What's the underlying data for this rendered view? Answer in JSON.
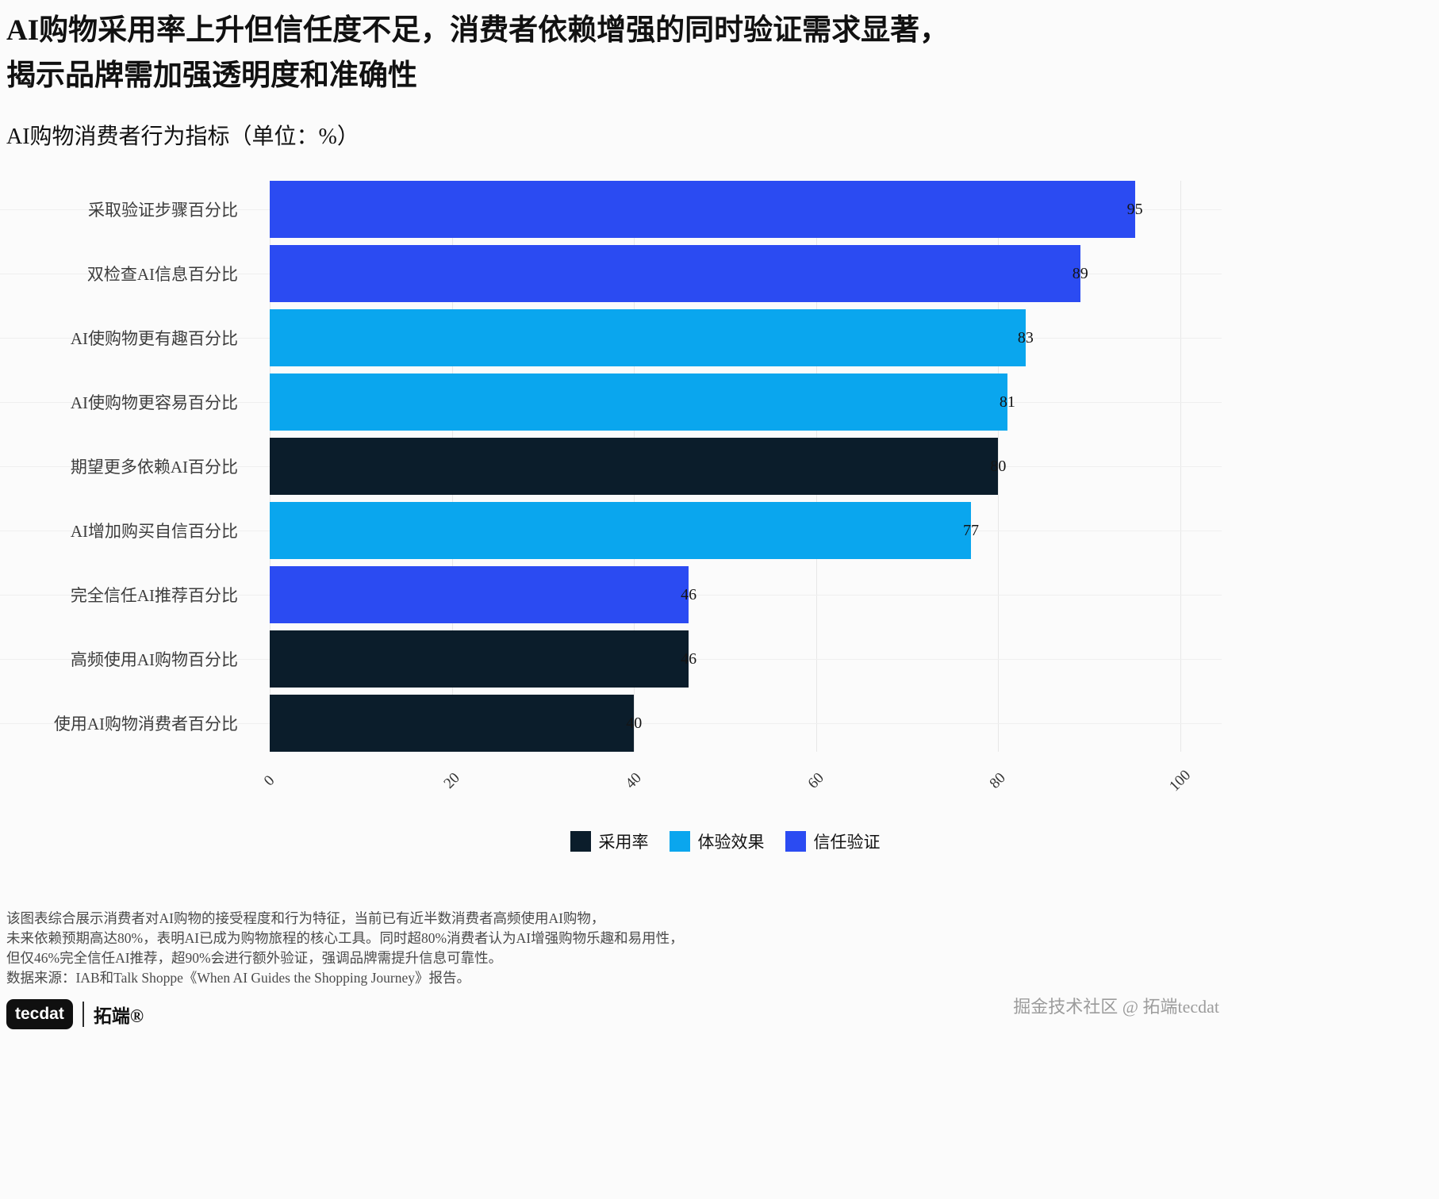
{
  "headline": {
    "line1": "AI购物采用率上升但信任度不足，消费者依赖增强的同时验证需求显著，",
    "line2": "揭示品牌需加强透明度和准确性"
  },
  "chart_data": {
    "type": "bar",
    "orientation": "horizontal",
    "title": "AI购物消费者行为指标（单位：%）",
    "categories": [
      "采取验证步骤百分比",
      "双检查AI信息百分比",
      "AI使购物更有趣百分比",
      "AI使购物更容易百分比",
      "期望更多依赖AI百分比",
      "AI增加购买自信百分比",
      "完全信任AI推荐百分比",
      "高频使用AI购物百分比",
      "使用AI购物消费者百分比"
    ],
    "values": [
      95,
      89,
      83,
      81,
      80,
      77,
      46,
      46,
      40
    ],
    "series_of": [
      "trust",
      "trust",
      "experience",
      "experience",
      "adoption",
      "experience",
      "trust",
      "adoption",
      "adoption"
    ],
    "series_colors": {
      "adoption": "#0b1d2b",
      "experience": "#0aa6ee",
      "trust": "#2b4bf2"
    },
    "xticks": [
      0,
      20,
      40,
      60,
      80,
      100
    ],
    "xlim": [
      0,
      100
    ],
    "grid": true,
    "legend_position": "bottom-center",
    "legend": [
      {
        "name": "采用率",
        "color": "#0b1d2b"
      },
      {
        "name": "体验效果",
        "color": "#0aa6ee"
      },
      {
        "name": "信任验证",
        "color": "#2b4bf2"
      }
    ]
  },
  "footer": {
    "lines": [
      "该图表综合展示消费者对AI购物的接受程度和行为特征，当前已有近半数消费者高频使用AI购物，",
      "未来依赖预期高达80%，表明AI已成为购物旅程的核心工具。同时超80%消费者认为AI增强购物乐趣和易用性，",
      "但仅46%完全信任AI推荐，超90%会进行额外验证，强调品牌需提升信息可靠性。",
      "数据来源：IAB和Talk Shoppe《When AI Guides the Shopping Journey》报告。"
    ]
  },
  "logo": {
    "brand": "tecdat",
    "suffix": "拓端®"
  },
  "watermark": "掘金技术社区 @ 拓端tecdat"
}
